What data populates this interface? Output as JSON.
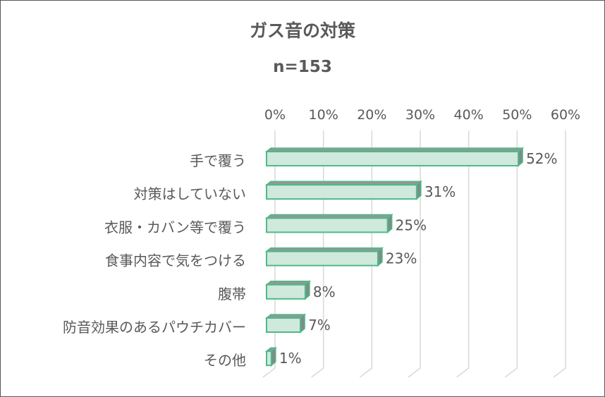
{
  "chart_data": {
    "type": "bar",
    "orientation": "horizontal",
    "style": "3d",
    "title": "ガス音の対策",
    "subtitle": "n=153",
    "categories": [
      "手で覆う",
      "対策はしていない",
      "衣服・カバン等で覆う",
      "食事内容で気をつける",
      "腹帯",
      "防音効果のあるパウチカバー",
      "その他"
    ],
    "values": [
      52,
      31,
      25,
      23,
      8,
      7,
      1
    ],
    "data_labels": [
      "52%",
      "31%",
      "25%",
      "23%",
      "8%",
      "7%",
      "1%"
    ],
    "xlim": [
      0,
      60
    ],
    "x_ticks": [
      "0%",
      "10%",
      "20%",
      "30%",
      "40%",
      "50%",
      "60%"
    ],
    "x_axis_position": "top",
    "grid": true,
    "legend": "none",
    "colors": {
      "bar_face": "#CFE9DC",
      "bar_edge": "#4EB98A",
      "bar_side": "#8E9A94",
      "grid": "#D9D9D9",
      "text": "#595959"
    }
  }
}
